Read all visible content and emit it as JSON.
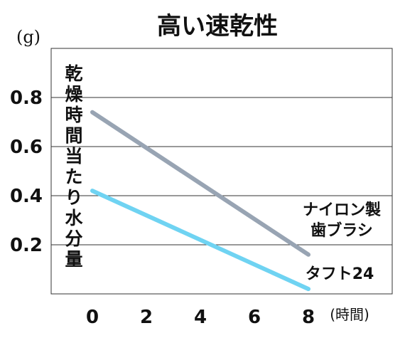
{
  "chart_data": {
    "type": "line",
    "title": "高い速乾性",
    "ylabel": "乾燥時間当たり水分量",
    "yunit": "(g)",
    "xunit": "(時間)",
    "xlim": [
      0,
      8
    ],
    "ylim": [
      0,
      1.0
    ],
    "yticks": [
      "0.2",
      "0.4",
      "0.6",
      "0.8"
    ],
    "yticks_values": [
      0.2,
      0.4,
      0.6,
      0.8
    ],
    "xticks": [
      "0",
      "2",
      "4",
      "6",
      "8"
    ],
    "xticks_values": [
      0,
      2,
      4,
      6,
      8
    ],
    "grid": true,
    "series": [
      {
        "name": "ナイロン製歯ブラシ",
        "label_lines": [
          "ナイロン製",
          "歯ブラシ"
        ],
        "color": "#98a4b3",
        "x": [
          0,
          8
        ],
        "y": [
          0.74,
          0.16
        ]
      },
      {
        "name": "タフト24",
        "label_lines": [
          "タフト24"
        ],
        "color": "#6fd3f2",
        "x": [
          0,
          8
        ],
        "y": [
          0.42,
          0.02
        ]
      }
    ]
  }
}
